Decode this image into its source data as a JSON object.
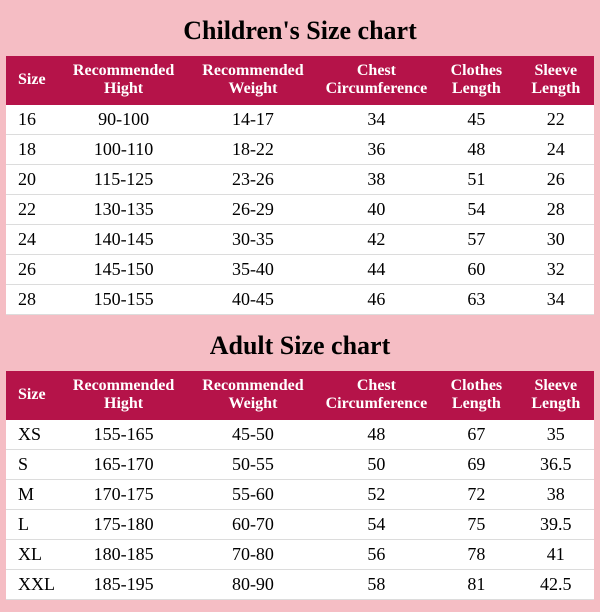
{
  "background_color": "#f5bdc4",
  "header_bg": "#b51349",
  "header_text_color": "#ffffff",
  "row_bg": "#ffffff",
  "title_font_family": "Times New Roman",
  "charts": [
    {
      "title": "Children's Size chart",
      "columns": [
        "Size",
        "Recommended Hight",
        "Recommended Weight",
        "Chest Circumference",
        "Clothes Length",
        "Sleeve Length"
      ],
      "rows": [
        [
          "16",
          "90-100",
          "14-17",
          "34",
          "45",
          "22"
        ],
        [
          "18",
          "100-110",
          "18-22",
          "36",
          "48",
          "24"
        ],
        [
          "20",
          "115-125",
          "23-26",
          "38",
          "51",
          "26"
        ],
        [
          "22",
          "130-135",
          "26-29",
          "40",
          "54",
          "28"
        ],
        [
          "24",
          "140-145",
          "30-35",
          "42",
          "57",
          "30"
        ],
        [
          "26",
          "145-150",
          "35-40",
          "44",
          "60",
          "32"
        ],
        [
          "28",
          "150-155",
          "40-45",
          "46",
          "63",
          "34"
        ]
      ]
    },
    {
      "title": "Adult Size chart",
      "columns": [
        "Size",
        "Recommended Hight",
        "Recommended Weight",
        "Chest Circumference",
        "Clothes Length",
        "Sleeve Length"
      ],
      "rows": [
        [
          "XS",
          "155-165",
          "45-50",
          "48",
          "67",
          "35"
        ],
        [
          "S",
          "165-170",
          "50-55",
          "50",
          "69",
          "36.5"
        ],
        [
          "M",
          "170-175",
          "55-60",
          "52",
          "72",
          "38"
        ],
        [
          "L",
          "175-180",
          "60-70",
          "54",
          "75",
          "39.5"
        ],
        [
          "XL",
          "180-185",
          "70-80",
          "56",
          "78",
          "41"
        ],
        [
          "XXL",
          "185-195",
          "80-90",
          "58",
          "81",
          "42.5"
        ]
      ]
    }
  ]
}
